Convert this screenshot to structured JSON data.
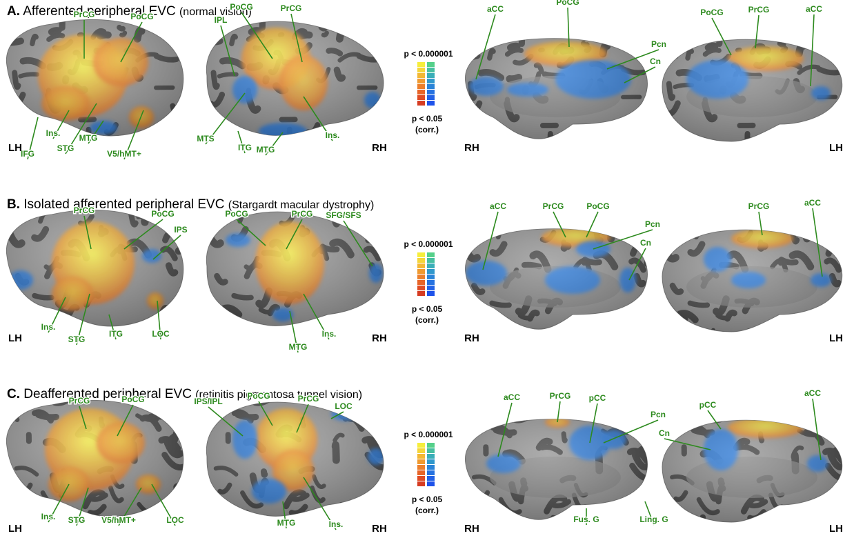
{
  "panels": [
    {
      "letter": "A.",
      "title": "Afferented peripheral EVC",
      "subtitle": "(normal vision)",
      "hemis": [
        "LH",
        "RH",
        "RH",
        "LH"
      ],
      "labels": {
        "lat_l": [
          "PrCG",
          "PoCG",
          "IFG",
          "Ins.",
          "STG",
          "MTG",
          "V5/hMT+"
        ],
        "lat_r": [
          "IPL",
          "PoCG",
          "PrCG",
          "MTS",
          "ITG",
          "MTG",
          "Ins."
        ],
        "med_r": [
          "aCC",
          "PoCG",
          "Pcn",
          "Cn"
        ],
        "med_l": [
          "PoCG",
          "PrCG",
          "aCC"
        ]
      }
    },
    {
      "letter": "B.",
      "title": "Isolated afferented peripheral EVC",
      "subtitle": "(Stargardt macular dystrophy)",
      "hemis": [
        "LH",
        "RH",
        "RH",
        "LH"
      ],
      "labels": {
        "lat_l": [
          "PrCG",
          "PoCG",
          "IPS",
          "Ins.",
          "STG",
          "ITG",
          "LOC"
        ],
        "lat_r": [
          "PoCG",
          "PrCG",
          "SFG/SFS",
          "MTG",
          "Ins."
        ],
        "med_r": [
          "aCC",
          "PrCG",
          "PoCG",
          "Pcn",
          "Cn"
        ],
        "med_l": [
          "PrCG",
          "aCC"
        ]
      }
    },
    {
      "letter": "C.",
      "title": "Deafferented peripheral EVC",
      "subtitle": "(retinitis pigmentosa tunnel vision)",
      "hemis": [
        "LH",
        "RH",
        "RH",
        "LH"
      ],
      "labels": {
        "lat_l": [
          "PrCG",
          "PoCG",
          "Ins.",
          "STG",
          "V5/hMT+",
          "LOC"
        ],
        "lat_r": [
          "IPS/IPL",
          "PoCG",
          "PrCG",
          "LOC",
          "MTG",
          "Ins."
        ],
        "med_r": [
          "aCC",
          "PrCG",
          "pCC",
          "Pcn",
          "Fus. G",
          "Ling. G"
        ],
        "med_l": [
          "pCC",
          "Cn",
          "aCC"
        ]
      }
    }
  ],
  "colorbar": {
    "top_label": "p < 0.000001",
    "bottom_label": "p < 0.05",
    "corr_label": "(corr.)",
    "warm": [
      "#f6ee3c",
      "#f5d63a",
      "#f3b835",
      "#f09a30",
      "#ec7f2c",
      "#e86528",
      "#e04c25",
      "#d63c22"
    ],
    "cool": [
      "#55d08a",
      "#47bfa0",
      "#3aaeb8",
      "#3098cc",
      "#2a84d8",
      "#2672e0",
      "#2262e6",
      "#1e52ea"
    ]
  },
  "colors": {
    "label": "#2d8a1e",
    "sulcus": "#4a4a4a",
    "gyrus": "#9a9a9a",
    "activation_warm": "#f2a92d",
    "activation_cool": "#2f7fe0"
  }
}
